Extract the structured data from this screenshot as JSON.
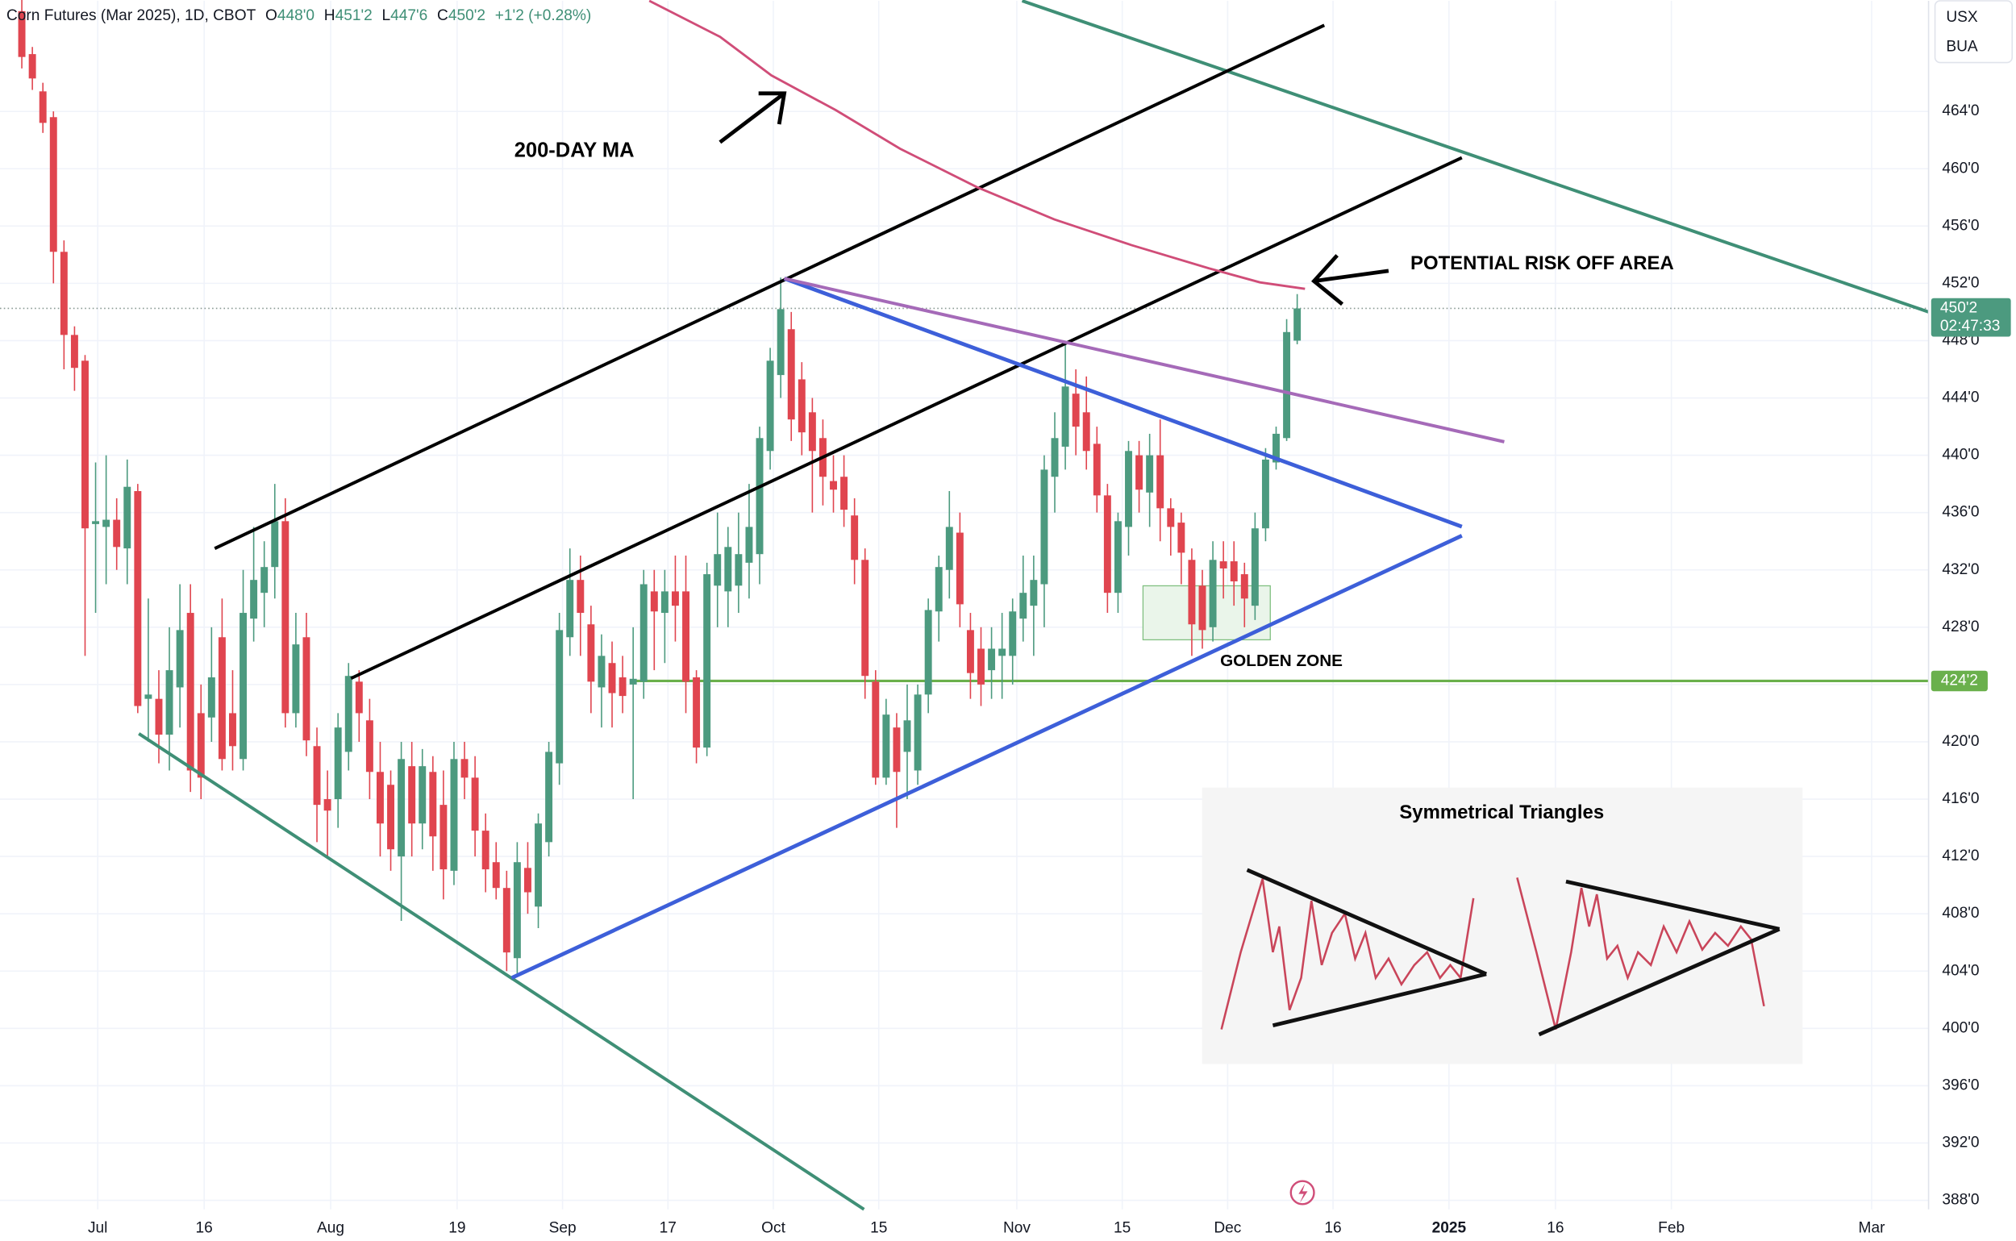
{
  "chart_data": {
    "type": "candlestick",
    "header": {
      "symbol": "Corn Futures (Mar 2025), 1D, CBOT",
      "ohlc": [
        {
          "key": "O",
          "value": "448'0"
        },
        {
          "key": "H",
          "value": "451'2"
        },
        {
          "key": "L",
          "value": "447'6"
        },
        {
          "key": "C",
          "value": "450'2"
        }
      ],
      "change": "+1'2 (+0.28%)"
    },
    "currency": "USX",
    "unit": "BUA",
    "annotations": {
      "ma": "200-DAY MA",
      "risk": "POTENTIAL RISK OFF AREA",
      "zone": "GOLDEN ZONE",
      "inset_title": "Symmetrical Triangles"
    },
    "up_color": "#4c9a7f",
    "down_color": "#e0454f",
    "open": [
      471,
      468,
      465.4,
      463.6,
      454.2,
      448.4,
      446.6,
      435.2,
      435,
      435.5,
      433.5,
      437.5,
      423,
      423,
      420.5,
      423.8,
      429,
      422,
      421.7,
      427.3,
      422,
      418.8,
      428.6,
      430.4,
      432.2,
      435.4,
      422,
      427.3,
      419.7,
      416,
      416,
      419.3,
      424.2,
      421.5,
      417.9,
      417,
      412,
      418.3,
      414.3,
      417.9,
      415.6,
      411,
      418.8,
      417.5,
      413.8,
      411.6,
      409.8,
      404.9,
      411.2,
      408.5,
      413,
      418.5,
      427.3,
      431.3,
      428.2,
      423.8,
      425.5,
      424.5,
      424,
      424.2,
      430.5,
      429,
      430.5,
      430.5,
      424.5,
      419.6,
      430.9,
      430.5,
      430.9,
      432.5,
      433.1,
      440.3,
      445.6,
      448.8,
      445.3,
      443,
      441.2,
      438.2,
      438.5,
      435.8,
      432.7,
      424.2,
      417.5,
      421,
      419.3,
      418,
      423.3,
      429.1,
      432,
      434.6,
      427.8,
      426.5,
      425,
      426,
      426,
      428.6,
      429.5,
      431,
      438.5,
      440.6,
      444.3,
      443,
      440.8,
      437.2,
      430.4,
      435,
      440,
      437.4,
      440,
      436.3,
      435.3,
      432.7,
      430.9,
      428,
      432.6,
      432.6,
      431.7,
      429.5,
      434.9,
      439.5,
      441.2,
      448
    ],
    "high": [
      472.5,
      468.5,
      466,
      464,
      455,
      449,
      447,
      439.5,
      440,
      437,
      439.7,
      438,
      430,
      425,
      428,
      431,
      431,
      424,
      428,
      430,
      425,
      432,
      435,
      434,
      438,
      437,
      429,
      429,
      421,
      418,
      422,
      425.5,
      425,
      423,
      420,
      418,
      420,
      420,
      419.5,
      419,
      418,
      420,
      420,
      419,
      415,
      413,
      411,
      413,
      413,
      415,
      420,
      429,
      433.5,
      433,
      429.5,
      427.5,
      427,
      426,
      428,
      432,
      432,
      432,
      433,
      433,
      425,
      432.5,
      436,
      435,
      436,
      438,
      442,
      447.5,
      452.4,
      450,
      446.5,
      444,
      442.5,
      440,
      440,
      437,
      433.5,
      425,
      423,
      422,
      424,
      424,
      430,
      433,
      437.5,
      436,
      429,
      428,
      428,
      429,
      430,
      433,
      433,
      440,
      443,
      448,
      446,
      445.5,
      442,
      438,
      436,
      441,
      441,
      441.5,
      442.5,
      437,
      436,
      433.5,
      432,
      434,
      434,
      434,
      432.5,
      436,
      440.5,
      442,
      449.5,
      451.25
    ],
    "low": [
      467,
      465.5,
      462.5,
      452,
      446,
      444.5,
      426,
      429,
      431,
      432,
      431,
      422,
      420,
      418.5,
      418,
      421,
      416.5,
      416,
      420,
      418,
      418,
      418,
      427,
      428,
      430,
      421,
      421,
      419,
      413,
      412,
      414,
      418,
      420,
      416,
      412,
      411,
      407.5,
      412,
      412.5,
      411,
      409,
      410,
      416,
      412,
      409.5,
      409,
      404,
      403.7,
      408,
      407,
      412,
      417,
      426,
      426,
      422,
      421,
      421,
      422,
      416,
      423,
      425,
      425.5,
      427,
      422,
      418.5,
      419,
      428,
      428,
      429,
      430,
      431,
      439,
      444,
      441,
      440,
      436,
      436.5,
      436,
      435,
      431,
      423,
      417,
      417,
      414,
      416,
      417,
      422,
      427,
      430,
      428,
      423,
      422.5,
      423,
      423,
      424,
      427,
      426,
      428,
      436,
      439,
      440,
      439,
      436,
      429,
      429,
      433,
      436,
      435,
      434,
      433,
      431,
      426,
      426.5,
      427,
      430,
      429.5,
      428,
      428.5,
      434,
      439,
      441,
      447.75
    ],
    "close": [
      467.8,
      466.3,
      463.2,
      454.2,
      448.4,
      446.1,
      434.9,
      435.4,
      435.5,
      433.6,
      437.8,
      422.5,
      423.3,
      420.5,
      425,
      427.8,
      418,
      417.5,
      424.5,
      418.8,
      419.7,
      429,
      431.3,
      432.2,
      435.4,
      422,
      426.8,
      420.1,
      415.6,
      415.2,
      421,
      424.6,
      422,
      417.9,
      414.3,
      412.5,
      418.8,
      414.3,
      418.3,
      413.4,
      411.1,
      418.8,
      417.5,
      413.8,
      411.1,
      409.8,
      405.3,
      411.6,
      409.5,
      414.3,
      419.3,
      427.8,
      431.3,
      429,
      424.2,
      426,
      423.4,
      423.2,
      424.4,
      431,
      429.1,
      430.5,
      429.5,
      424.2,
      419.6,
      431.7,
      433.1,
      433.6,
      433.1,
      435,
      441.2,
      446.6,
      450.2,
      442.5,
      441.6,
      440.3,
      438.5,
      437.6,
      436.2,
      432.7,
      424.6,
      417.5,
      421.9,
      417.9,
      421.5,
      423.3,
      429.2,
      432.2,
      435,
      429.6,
      424.8,
      424,
      426.5,
      426.5,
      429.1,
      430.4,
      431.3,
      439,
      441.2,
      444.8,
      442,
      440.3,
      437.2,
      430.4,
      435.4,
      440.3,
      437.6,
      440,
      436.3,
      435,
      433.2,
      428.2,
      427.8,
      432.7,
      432.1,
      431.2,
      430,
      434.9,
      439.7,
      441.5,
      448.6,
      450.25
    ],
    "xlim": [
      -2.07,
      180.9
    ],
    "xticks": [
      {
        "value": 7.2,
        "label": "Jul"
      },
      {
        "value": 17.3,
        "label": "16"
      },
      {
        "value": 29.3,
        "label": "Aug"
      },
      {
        "value": 41.3,
        "label": "19"
      },
      {
        "value": 51.3,
        "label": "Sep"
      },
      {
        "value": 61.3,
        "label": "17"
      },
      {
        "value": 71.3,
        "label": "Oct"
      },
      {
        "value": 81.3,
        "label": "15"
      },
      {
        "value": 94.4,
        "label": "Nov"
      },
      {
        "value": 104.4,
        "label": "15"
      },
      {
        "value": 114.4,
        "label": "Dec"
      },
      {
        "value": 124.4,
        "label": "16"
      },
      {
        "value": 135.4,
        "label": "2025"
      },
      {
        "value": 145.5,
        "label": "16"
      },
      {
        "value": 156.5,
        "label": "Feb"
      },
      {
        "value": 175.5,
        "label": "Mar"
      }
    ],
    "ylim": [
      387.37,
      471.72
    ],
    "yticks": [
      {
        "value": 464,
        "label": "464'0"
      },
      {
        "value": 460,
        "label": "460'0"
      },
      {
        "value": 456,
        "label": "456'0"
      },
      {
        "value": 452,
        "label": "452'0"
      },
      {
        "value": 448,
        "label": "448'0"
      },
      {
        "value": 444,
        "label": "444'0"
      },
      {
        "value": 440,
        "label": "440'0"
      },
      {
        "value": 436,
        "label": "436'0"
      },
      {
        "value": 432,
        "label": "432'0"
      },
      {
        "value": 428,
        "label": "428'0"
      },
      {
        "value": 424,
        "label": "424'0"
      },
      {
        "value": 420,
        "label": "420'0"
      },
      {
        "value": 416,
        "label": "416'0"
      },
      {
        "value": 412,
        "label": "412'0"
      },
      {
        "value": 408,
        "label": "408'0"
      },
      {
        "value": 404,
        "label": "404'0"
      },
      {
        "value": 400,
        "label": "400'0"
      },
      {
        "value": 396,
        "label": "396'0"
      },
      {
        "value": 392,
        "label": "392'0"
      },
      {
        "value": 388,
        "label": "388'0"
      }
    ],
    "last_price": {
      "value": 450.25,
      "label": "450'2",
      "countdown": "02:47:33"
    },
    "level": {
      "value": 424.25,
      "label": "424'2"
    },
    "grid": true
  }
}
